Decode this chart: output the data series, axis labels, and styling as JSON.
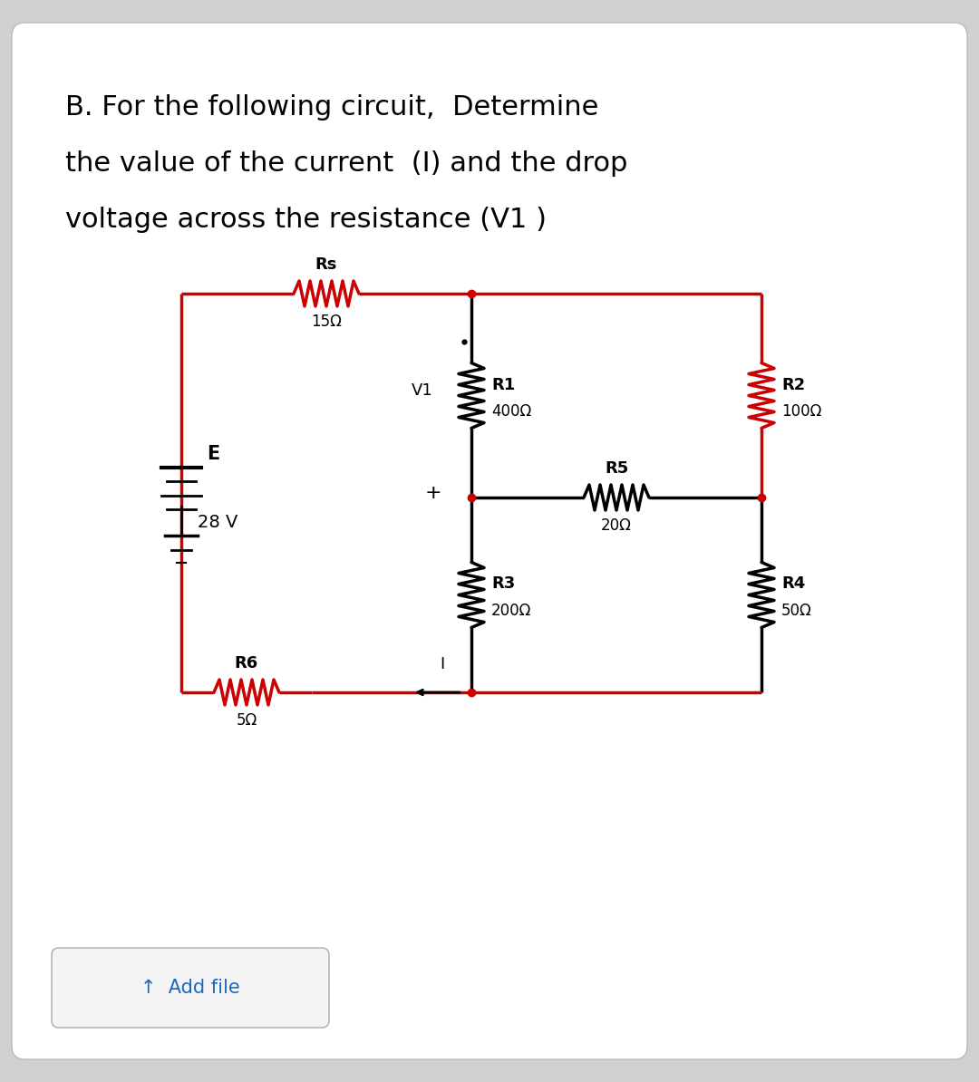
{
  "title_line1": "B. For the following circuit,  Determine",
  "title_line2": "the value of the current  (I) and the drop",
  "title_line3": "voltage across the resistance (V1 )",
  "bg_outer": "#d0d0d0",
  "bg_inner": "#ffffff",
  "circuit_color": "#cc0000",
  "black": "#000000",
  "blue": "#1a6bbf",
  "title_fontsize": 22,
  "add_file_text": "↑  Add file"
}
